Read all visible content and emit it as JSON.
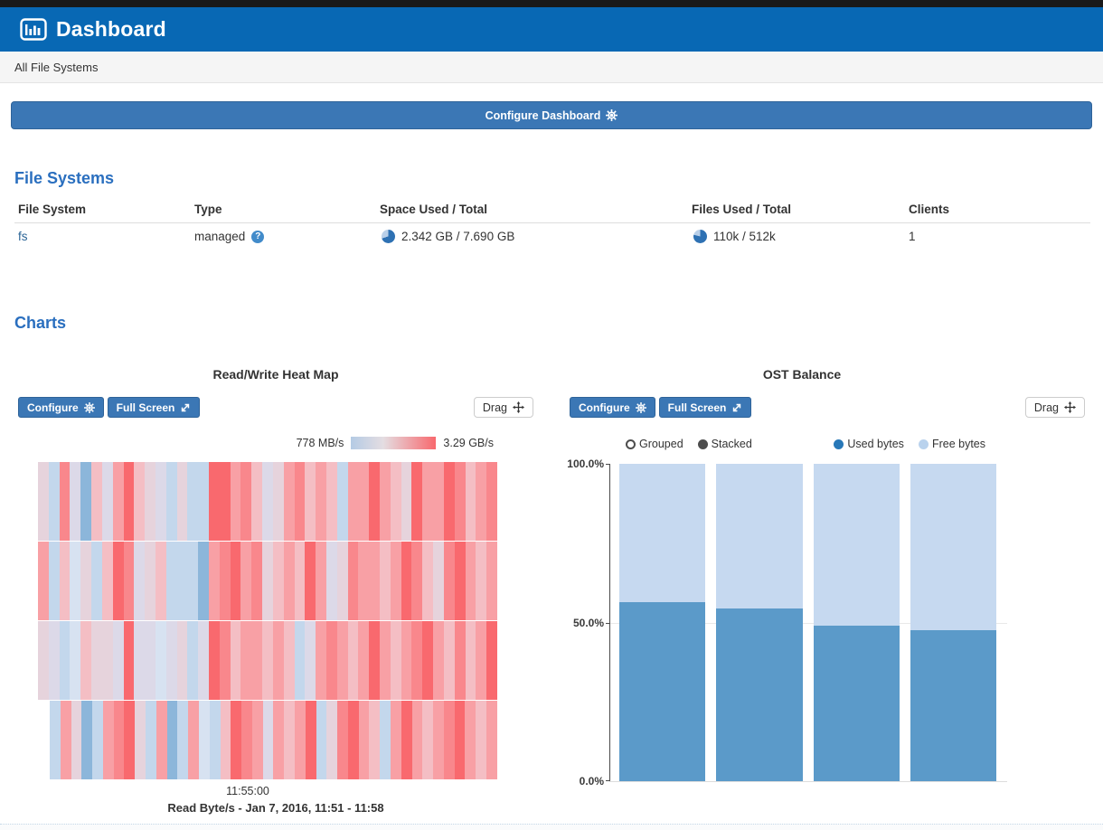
{
  "header": {
    "title": "Dashboard"
  },
  "breadcrumb": {
    "text": "All File Systems"
  },
  "configure_dashboard": {
    "label": "Configure Dashboard"
  },
  "chart_controls": {
    "configure": "Configure",
    "full_screen": "Full Screen",
    "drag": "Drag"
  },
  "file_systems": {
    "heading": "File Systems",
    "columns": [
      "File System",
      "Type",
      "Space Used / Total",
      "Files Used / Total",
      "Clients"
    ],
    "rows": [
      {
        "name": "fs",
        "type": "managed",
        "space": "2.342 GB / 7.690 GB",
        "space_used_pct": 30,
        "files": "110k / 512k",
        "files_used_pct": 21,
        "clients": "1"
      }
    ]
  },
  "charts": {
    "heading": "Charts"
  },
  "chart_data": [
    {
      "type": "heatmap",
      "title": "Read/Write Heat Map",
      "metric": "Read Byte/s",
      "time_range": "Jan 7, 2016, 11:51 - 11:58",
      "caption": "Read Byte/s - Jan 7, 2016, 11:51 - 11:58",
      "x_tick_labels": [
        "11:55:00"
      ],
      "legend": {
        "min_label": "778 MB/s",
        "max_label": "3.29 GB/s",
        "min_color": "#b4cbe4",
        "max_color": "#f8696e"
      },
      "row_count": 4,
      "cell_colors": [
        [
          "#e6d3dc",
          "#c3d7ec",
          "#f9878c",
          "#dcd9e8",
          "#8cb6da",
          "#f4bec4",
          "#dcd9e8",
          "#f8a0a5",
          "#f9696e",
          "#f4bec4",
          "#e6d3dc",
          "#dcd9e8",
          "#c3d7ec",
          "#e6d3dc",
          "#c3d7ec",
          "#c3d7ec",
          "#f9696e",
          "#f9696e",
          "#f8a0a5",
          "#f9878c",
          "#f4bec4",
          "#dcd9e8",
          "#e6d3dc",
          "#f8a0a5",
          "#f9878c",
          "#f4bec4",
          "#f8a0a5",
          "#f4bec4",
          "#c3d7ec",
          "#f8a0a5",
          "#f8a0a5",
          "#f9696e",
          "#f8a0a5",
          "#f4bec4",
          "#e6d3dc",
          "#f9696e",
          "#f8a0a5",
          "#f8a0a5",
          "#f9696e",
          "#f9878c",
          "#f4bec4",
          "#f8a0a5",
          "#f9878c"
        ],
        [
          "#f8a0a5",
          "#c3d7ec",
          "#f4bec4",
          "#d7e2f1",
          "#e6d3dc",
          "#c3d7ec",
          "#f4bec4",
          "#f9696e",
          "#f9878c",
          "#dcd9e8",
          "#e6d3dc",
          "#f4bec4",
          "#c3d7ec",
          "#c3d7ec",
          "#c3d7ec",
          "#8cb6da",
          "#f8a0a5",
          "#f9878c",
          "#f9696e",
          "#f8a0a5",
          "#f9878c",
          "#e6d3dc",
          "#f4bec4",
          "#f8a0a5",
          "#f4bec4",
          "#f9696e",
          "#f8a0a5",
          "#dcd9e8",
          "#e6d3dc",
          "#f9878c",
          "#f8a0a5",
          "#f8a0a5",
          "#f4bec4",
          "#f8a0a5",
          "#f9696e",
          "#f9878c",
          "#f4bec4",
          "#e6d3dc",
          "#f9878c",
          "#f9696e",
          "#f8a0a5",
          "#f4bec4",
          "#f8a0a5"
        ],
        [
          "#e6d3dc",
          "#dcd9e8",
          "#c3d7ec",
          "#d7e2f1",
          "#f4bec4",
          "#e6d3dc",
          "#e6d3dc",
          "#dcd9e8",
          "#f9696e",
          "#dcd9e8",
          "#dcd9e8",
          "#d7e2f1",
          "#dcd9e8",
          "#e6d3dc",
          "#c3d7ec",
          "#dcd9e8",
          "#f9696e",
          "#f9878c",
          "#f4bec4",
          "#f8a0a5",
          "#f8a0a5",
          "#f4bec4",
          "#f8a0a5",
          "#f4bec4",
          "#c3d7ec",
          "#dcd9e8",
          "#f8a0a5",
          "#f9878c",
          "#f8a0a5",
          "#f4bec4",
          "#f8a0a5",
          "#f9696e",
          "#f8a0a5",
          "#f4bec4",
          "#f8a0a5",
          "#f9878c",
          "#f9696e",
          "#f8a0a5",
          "#f4bec4",
          "#f9878c",
          "#f4bec4",
          "#f8a0a5",
          "#f9696e"
        ],
        [
          "#c3d7ec",
          "#f8a0a5",
          "#e6d3dc",
          "#8cb6da",
          "#c3d7ec",
          "#f8a0a5",
          "#f9878c",
          "#f9696e",
          "#e6d3dc",
          "#c3d7ec",
          "#f8a0a5",
          "#8cb6da",
          "#c3d7ec",
          "#f8a0a5",
          "#d7e2f1",
          "#c3d7ec",
          "#f4bec4",
          "#f9696e",
          "#f9878c",
          "#f8a0a5",
          "#dcd9e8",
          "#f8a0a5",
          "#f4bec4",
          "#f8a0a5",
          "#f9696e",
          "#c3d7ec",
          "#e6d3dc",
          "#f9878c",
          "#f9696e",
          "#f8a0a5",
          "#f4bec4",
          "#c3d7ec",
          "#f8a0a5",
          "#f9696e",
          "#f8a0a5",
          "#f4bec4",
          "#f8a0a5",
          "#f9878c",
          "#f9696e",
          "#f8a0a5",
          "#f4bec4",
          "#f8a0a5"
        ]
      ]
    },
    {
      "type": "bar",
      "mode": "stacked",
      "title": "OST Balance",
      "ylim": [
        0,
        100
      ],
      "y_tick_labels": [
        "100.0%",
        "50.0%",
        "0.0%"
      ],
      "mode_options": [
        {
          "label": "Grouped",
          "selected": false
        },
        {
          "label": "Stacked",
          "selected": true
        }
      ],
      "series": [
        {
          "name": "Used bytes",
          "color": "#5b9ac9",
          "values": [
            56.3,
            54.5,
            48.9,
            47.7
          ]
        },
        {
          "name": "Free bytes",
          "color": "#c6d9f0",
          "values": [
            43.7,
            45.5,
            51.1,
            52.3
          ]
        }
      ]
    }
  ]
}
